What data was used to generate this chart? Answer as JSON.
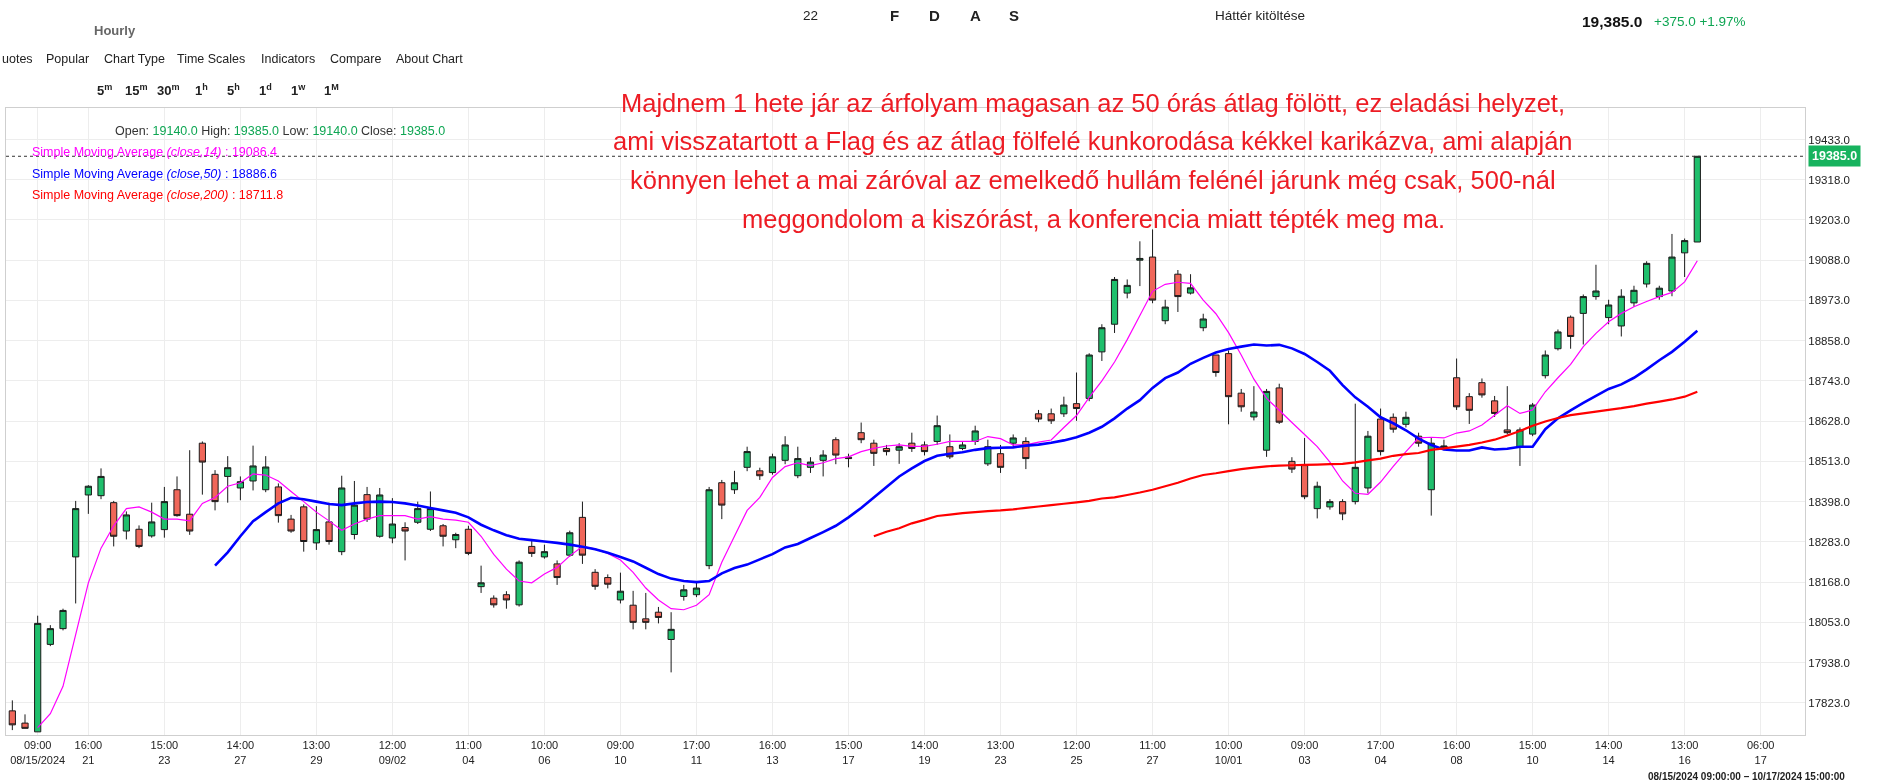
{
  "chart_data": {
    "type": "candlestick",
    "subtitle": "Hourly",
    "categories": [
      null,
      null,
      "09:00\n08/15/2024",
      null,
      null,
      null,
      "16:00\n21",
      null,
      null,
      null,
      null,
      null,
      "15:00\n23",
      null,
      null,
      null,
      null,
      null,
      "14:00\n27",
      null,
      null,
      null,
      null,
      null,
      "13:00\n29",
      null,
      null,
      null,
      null,
      null,
      "12:00\n09/02",
      null,
      null,
      null,
      null,
      null,
      "11:00\n04",
      null,
      null,
      null,
      null,
      null,
      "10:00\n06",
      null,
      null,
      null,
      null,
      null,
      "09:00\n10",
      null,
      null,
      null,
      null,
      null,
      "17:00\n11",
      null,
      null,
      null,
      null,
      null,
      "16:00\n13",
      null,
      null,
      null,
      null,
      null,
      "15:00\n17",
      null,
      null,
      null,
      null,
      null,
      "14:00\n19",
      null,
      null,
      null,
      null,
      null,
      "13:00\n23",
      null,
      null,
      null,
      null,
      null,
      "12:00\n25",
      null,
      null,
      null,
      null,
      null,
      "11:00\n27",
      null,
      null,
      null,
      null,
      null,
      "10:00\n10/01",
      null,
      null,
      null,
      null,
      null,
      "09:00\n03",
      null,
      null,
      null,
      null,
      null,
      "17:00\n04",
      null,
      null,
      null,
      null,
      null,
      "16:00\n08",
      null,
      null,
      null,
      null,
      null,
      "15:00\n10",
      null,
      null,
      null,
      null,
      null,
      "14:00\n14",
      null,
      null,
      null,
      null,
      null,
      "13:00\n16",
      null,
      null,
      null,
      null,
      null,
      "06:00\n17",
      null,
      null,
      null
    ],
    "ohlc": [
      [
        17800,
        17830,
        17745,
        17760
      ],
      [
        17765,
        17790,
        17750,
        17750
      ],
      [
        17740,
        18072,
        17740,
        18050
      ],
      [
        17990,
        18045,
        17985,
        18035
      ],
      [
        18035,
        18092,
        18030,
        18087
      ],
      [
        18240,
        18400,
        18107,
        18378
      ],
      [
        18417,
        18445,
        18363,
        18442
      ],
      [
        18415,
        18493,
        18405,
        18470
      ],
      [
        18395,
        18400,
        18270,
        18299
      ],
      [
        18314,
        18370,
        18290,
        18360
      ],
      [
        18319,
        18330,
        18265,
        18270
      ],
      [
        18300,
        18395,
        18295,
        18340
      ],
      [
        18318,
        18440,
        18295,
        18398
      ],
      [
        18432,
        18470,
        18355,
        18358
      ],
      [
        18362,
        18545,
        18303,
        18314
      ],
      [
        18565,
        18570,
        18418,
        18511
      ],
      [
        18476,
        18488,
        18373,
        18398
      ],
      [
        18470,
        18528,
        18395,
        18495
      ],
      [
        18437,
        18470,
        18402,
        18455
      ],
      [
        18457,
        18558,
        18430,
        18500
      ],
      [
        18432,
        18528,
        18425,
        18497
      ],
      [
        18440,
        18450,
        18338,
        18358
      ],
      [
        18348,
        18360,
        18309,
        18314
      ],
      [
        18383,
        18390,
        18255,
        18284
      ],
      [
        18280,
        18385,
        18260,
        18318
      ],
      [
        18340,
        18395,
        18275,
        18284
      ],
      [
        18255,
        18472,
        18245,
        18437
      ],
      [
        18304,
        18457,
        18290,
        18388
      ],
      [
        18418,
        18440,
        18340,
        18348
      ],
      [
        18299,
        18437,
        18295,
        18417
      ],
      [
        18294,
        18408,
        18279,
        18334
      ],
      [
        18324,
        18339,
        18230,
        18314
      ],
      [
        18339,
        18398,
        18334,
        18378
      ],
      [
        18319,
        18427,
        18314,
        18378
      ],
      [
        18329,
        18334,
        18270,
        18299
      ],
      [
        18289,
        18309,
        18265,
        18304
      ],
      [
        18319,
        18329,
        18245,
        18250
      ],
      [
        18155,
        18215,
        18137,
        18166
      ],
      [
        18122,
        18130,
        18095,
        18103
      ],
      [
        18132,
        18142,
        18092,
        18117
      ],
      [
        18103,
        18230,
        18098,
        18225
      ],
      [
        18270,
        18290,
        18240,
        18250
      ],
      [
        18240,
        18275,
        18235,
        18255
      ],
      [
        18220,
        18230,
        18160,
        18181
      ],
      [
        18245,
        18315,
        18240,
        18309
      ],
      [
        18353,
        18398,
        18220,
        18245
      ],
      [
        18196,
        18205,
        18146,
        18156
      ],
      [
        18181,
        18190,
        18150,
        18162
      ],
      [
        18117,
        18195,
        18107,
        18142
      ],
      [
        18102,
        18143,
        18033,
        18053
      ],
      [
        18063,
        18137,
        18033,
        18053
      ],
      [
        18082,
        18097,
        18050,
        18067
      ],
      [
        18004,
        18082,
        17910,
        18033
      ],
      [
        18127,
        18160,
        18115,
        18146
      ],
      [
        18132,
        18166,
        18125,
        18151
      ],
      [
        18215,
        18440,
        18205,
        18432
      ],
      [
        18452,
        18460,
        18348,
        18388
      ],
      [
        18432,
        18486,
        18420,
        18452
      ],
      [
        18496,
        18555,
        18485,
        18541
      ],
      [
        18486,
        18495,
        18460,
        18472
      ],
      [
        18481,
        18535,
        18475,
        18526
      ],
      [
        18516,
        18585,
        18505,
        18560
      ],
      [
        18472,
        18555,
        18465,
        18521
      ],
      [
        18496,
        18525,
        18480,
        18511
      ],
      [
        18516,
        18545,
        18470,
        18531
      ],
      [
        18575,
        18582,
        18505,
        18531
      ],
      [
        18525,
        18535,
        18496,
        18521
      ],
      [
        18595,
        18624,
        18565,
        18575
      ],
      [
        18565,
        18575,
        18500,
        18536
      ],
      [
        18550,
        18560,
        18530,
        18541
      ],
      [
        18545,
        18565,
        18506,
        18555
      ],
      [
        18565,
        18595,
        18540,
        18550
      ],
      [
        18560,
        18570,
        18530,
        18541
      ],
      [
        18570,
        18644,
        18560,
        18615
      ],
      [
        18555,
        18590,
        18520,
        18526
      ],
      [
        18550,
        18568,
        18545,
        18560
      ],
      [
        18570,
        18615,
        18560,
        18600
      ],
      [
        18506,
        18575,
        18500,
        18555
      ],
      [
        18535,
        18560,
        18480,
        18496
      ],
      [
        18565,
        18590,
        18555,
        18580
      ],
      [
        18570,
        18582,
        18491,
        18521
      ],
      [
        18649,
        18660,
        18625,
        18634
      ],
      [
        18649,
        18664,
        18620,
        18629
      ],
      [
        18649,
        18698,
        18640,
        18674
      ],
      [
        18678,
        18767,
        18629,
        18664
      ],
      [
        18693,
        18822,
        18685,
        18817
      ],
      [
        18826,
        18905,
        18800,
        18895
      ],
      [
        18905,
        19040,
        18880,
        19033
      ],
      [
        18994,
        19033,
        18979,
        19016
      ],
      [
        19088,
        19142,
        19014,
        19093
      ],
      [
        19097,
        19176,
        18965,
        18974
      ],
      [
        18915,
        18975,
        18905,
        18954
      ],
      [
        19048,
        19060,
        18940,
        18984
      ],
      [
        18994,
        19048,
        18990,
        19009
      ],
      [
        18895,
        18935,
        18885,
        18920
      ],
      [
        18817,
        18817,
        18755,
        18767
      ],
      [
        18821,
        18830,
        18619,
        18698
      ],
      [
        18708,
        18720,
        18655,
        18669
      ],
      [
        18640,
        18728,
        18630,
        18654
      ],
      [
        18545,
        18720,
        18526,
        18713
      ],
      [
        18723,
        18735,
        18620,
        18625
      ],
      [
        18513,
        18525,
        18480,
        18491
      ],
      [
        18501,
        18580,
        18405,
        18412
      ],
      [
        18378,
        18455,
        18350,
        18442
      ],
      [
        18383,
        18405,
        18375,
        18398
      ],
      [
        18398,
        18405,
        18345,
        18363
      ],
      [
        18398,
        18678,
        18390,
        18496
      ],
      [
        18437,
        18600,
        18422,
        18585
      ],
      [
        18634,
        18664,
        18530,
        18541
      ],
      [
        18639,
        18650,
        18595,
        18605
      ],
      [
        18619,
        18655,
        18610,
        18639
      ],
      [
        18585,
        18595,
        18555,
        18565
      ],
      [
        18432,
        18580,
        18358,
        18565
      ],
      [
        18553,
        18575,
        18545,
        18557
      ],
      [
        18752,
        18807,
        18660,
        18669
      ],
      [
        18698,
        18708,
        18620,
        18659
      ],
      [
        18738,
        18750,
        18695,
        18703
      ],
      [
        18686,
        18700,
        18640,
        18650
      ],
      [
        18603,
        18728,
        18590,
        18595
      ],
      [
        18555,
        18610,
        18500,
        18603
      ],
      [
        18591,
        18680,
        18585,
        18674
      ],
      [
        18758,
        18830,
        18750,
        18817
      ],
      [
        18835,
        18890,
        18830,
        18883
      ],
      [
        18925,
        18930,
        18835,
        18870
      ],
      [
        18936,
        18990,
        18847,
        18984
      ],
      [
        18984,
        19075,
        18975,
        19000
      ],
      [
        18924,
        18975,
        18905,
        18960
      ],
      [
        18900,
        19005,
        18870,
        18985
      ],
      [
        18966,
        19015,
        18955,
        19002
      ],
      [
        19020,
        19085,
        19010,
        19079
      ],
      [
        18984,
        19015,
        18975,
        19008
      ],
      [
        19000,
        19163,
        18985,
        19097
      ],
      [
        19109,
        19150,
        19040,
        19144
      ],
      [
        19140,
        19385,
        19140,
        19385
      ],
      null,
      null,
      null,
      null,
      null,
      null,
      null,
      null
    ],
    "series": [
      {
        "name": "Simple Moving Average (close,14) : 19086.4",
        "type": "line",
        "color": "#ff00ff",
        "values": [
          null,
          null,
          17752,
          17792,
          17870,
          18018,
          18166,
          18265,
          18329,
          18378,
          18383,
          18368,
          18348,
          18348,
          18343,
          18393,
          18410,
          18442,
          18452,
          18477,
          18474,
          18457,
          18427,
          18398,
          18368,
          18343,
          18316,
          18334,
          18348,
          18358,
          18358,
          18358,
          18348,
          18355,
          18348,
          18345,
          18339,
          18299,
          18247,
          18205,
          18171,
          18166,
          18191,
          18210,
          18243,
          18270,
          18263,
          18250,
          18231,
          18196,
          18151,
          18117,
          18092,
          18089,
          18102,
          18132,
          18225,
          18299,
          18373,
          18410,
          18467,
          18498,
          18509,
          18501,
          18509,
          18521,
          18526,
          18541,
          18550,
          18557,
          18560,
          18556,
          18556,
          18562,
          18570,
          18570,
          18570,
          18584,
          18578,
          18560,
          18560,
          18568,
          18574,
          18610,
          18644,
          18696,
          18743,
          18797,
          18861,
          18930,
          18999,
          19019,
          19025,
          19022,
          18974,
          18935,
          18881,
          18817,
          18748,
          18693,
          18659,
          18624,
          18590,
          18555,
          18511,
          18457,
          18422,
          18419,
          18454,
          18499,
          18541,
          18580,
          18582,
          18580,
          18594,
          18600,
          18617,
          18645,
          18672,
          18650,
          18660,
          18712,
          18752,
          18790,
          18841,
          18879,
          18912,
          18936,
          18955,
          18970,
          18984,
          18996,
          19026,
          19086.4,
          null,
          null,
          null,
          null,
          null,
          null,
          null,
          null
        ]
      },
      {
        "name": "Simple Moving Average (close,50) : 18886.6",
        "type": "line",
        "color": "#0000ff",
        "values": [
          null,
          null,
          null,
          null,
          null,
          null,
          null,
          null,
          null,
          null,
          null,
          null,
          null,
          null,
          null,
          null,
          18215,
          18253,
          18299,
          18342,
          18368,
          18393,
          18409,
          18405,
          18398,
          18391,
          18388,
          18393,
          18397,
          18398,
          18397,
          18393,
          18387,
          18380,
          18373,
          18366,
          18353,
          18332,
          18316,
          18302,
          18292,
          18288,
          18284,
          18280,
          18275,
          18269,
          18262,
          18252,
          18240,
          18227,
          18209,
          18191,
          18178,
          18171,
          18168,
          18171,
          18193,
          18208,
          18218,
          18233,
          18248,
          18267,
          18277,
          18294,
          18311,
          18329,
          18353,
          18380,
          18410,
          18440,
          18470,
          18493,
          18514,
          18529,
          18535,
          18539,
          18546,
          18551,
          18552,
          18553,
          18558,
          18561,
          18566,
          18573,
          18582,
          18595,
          18612,
          18636,
          18664,
          18688,
          18723,
          18751,
          18767,
          18792,
          18809,
          18824,
          18834,
          18841,
          18847,
          18844,
          18846,
          18836,
          18820,
          18797,
          18772,
          18731,
          18696,
          18669,
          18639,
          18622,
          18602,
          18578,
          18560,
          18547,
          18544,
          18544,
          18553,
          18547,
          18549,
          18555,
          18555,
          18605,
          18636,
          18659,
          18680,
          18700,
          18720,
          18733,
          18752,
          18776,
          18802,
          18826,
          18855,
          18886.6,
          null,
          null,
          null,
          null,
          null,
          null,
          null,
          null
        ]
      },
      {
        "name": "Simple Moving Average (close,200) : 18711.8",
        "type": "line",
        "color": "#ff0000",
        "values": [
          null,
          null,
          null,
          null,
          null,
          null,
          null,
          null,
          null,
          null,
          null,
          null,
          null,
          null,
          null,
          null,
          null,
          null,
          null,
          null,
          null,
          null,
          null,
          null,
          null,
          null,
          null,
          null,
          null,
          null,
          null,
          null,
          null,
          null,
          null,
          null,
          null,
          null,
          null,
          null,
          null,
          null,
          null,
          null,
          null,
          null,
          null,
          null,
          null,
          null,
          null,
          null,
          null,
          null,
          null,
          null,
          null,
          null,
          null,
          null,
          null,
          null,
          null,
          null,
          null,
          null,
          null,
          null,
          18299,
          18312,
          18322,
          18336,
          18346,
          18357,
          18361,
          18365,
          18368,
          18371,
          18373,
          18376,
          18380,
          18384,
          18388,
          18392,
          18396,
          18400,
          18407,
          18410,
          18417,
          18424,
          18432,
          18442,
          18452,
          18464,
          18474,
          18479,
          18485,
          18491,
          18495,
          18499,
          18501,
          18502,
          18503,
          18504,
          18505,
          18506,
          18510,
          18516,
          18521,
          18529,
          18534,
          18537,
          18546,
          18550,
          18555,
          18560,
          18567,
          18575,
          18587,
          18600,
          18615,
          18627,
          18637,
          18645,
          18650,
          18655,
          18660,
          18665,
          18671,
          18678,
          18684,
          18690,
          18698,
          18711.8,
          null,
          null,
          null,
          null,
          null,
          null,
          null,
          null
        ]
      }
    ],
    "ylim": [
      17731,
      19523
    ],
    "yticks": [
      {
        "value": 17823,
        "label": "17823.0"
      },
      {
        "value": 17938,
        "label": "17938.0"
      },
      {
        "value": 18053,
        "label": "18053.0"
      },
      {
        "value": 18168,
        "label": "18168.0"
      },
      {
        "value": 18283,
        "label": "18283.0"
      },
      {
        "value": 18398,
        "label": "18398.0"
      },
      {
        "value": 18513,
        "label": "18513.0"
      },
      {
        "value": 18628,
        "label": "18628.0"
      },
      {
        "value": 18743,
        "label": "18743.0"
      },
      {
        "value": 18858,
        "label": "18858.0"
      },
      {
        "value": 18973,
        "label": "18973.0"
      },
      {
        "value": 19088,
        "label": "19088.0"
      },
      {
        "value": 19203,
        "label": "19203.0"
      },
      {
        "value": 19318,
        "label": "19318.0"
      },
      {
        "value": 19433,
        "label": "19433.0"
      }
    ],
    "ref_lines": [
      {
        "axis": "y",
        "value": 19385,
        "label": "19385.0",
        "color": "#333333",
        "line_style": "dotted"
      }
    ],
    "grid": true,
    "legend": "top left",
    "annotations": [
      "Majdnem 1 hete jár az árfolyam magasan az 50 órás átlag fölött, ez eladási helyzet,\nami visszatartott a Flag és az átlag fölfelé kunkorodása kékkel karikázva, ami alapján\nkönnyen lehet a mai záróval az emelkedő hullám felénél járunk még csak, 500-nál\nmeggondolom a kiszórást, a konferencia miatt tépték meg ma.",
      "Open: 19140.0 High: 19385.0 Low: 19140.0 Close: 19385.0",
      "19,385.0",
      "+375.0 +1.97%",
      "08/15/2024 09:00:00 – 10/17/2024 15:00:00",
      "uotes",
      "Popular",
      "Chart Type",
      "Time Scales",
      "Indicators",
      "Compare",
      "About Chart",
      "5$^{m}$",
      "15$^{m}$",
      "30$^{m}$",
      "1$^{h}$",
      "5$^{h}$",
      "1$^{d}$",
      "1$^{w}$",
      "1$^{M}$",
      "22",
      "F",
      "D",
      "A",
      "S",
      "Háttér kitöltése"
    ]
  }
}
